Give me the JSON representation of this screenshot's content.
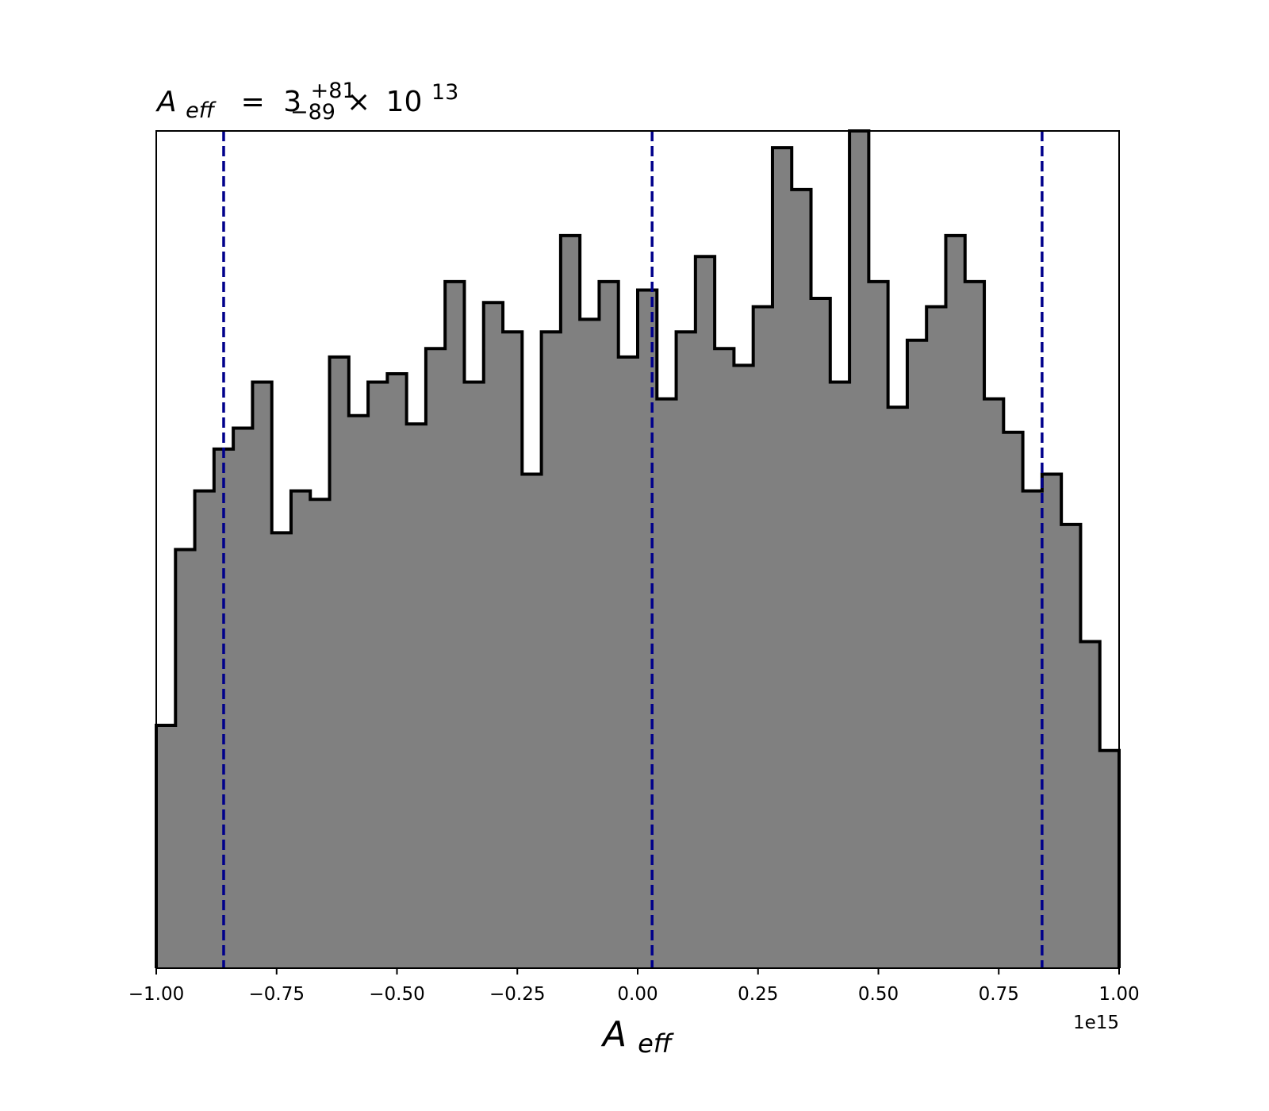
{
  "chart_data": {
    "type": "histogram",
    "title": {
      "variable": "A",
      "variable_subscript": "eff",
      "equals": "=",
      "value": "3",
      "upper_error": "+81",
      "lower_error": "−89",
      "times": "×",
      "base": "10",
      "exponent": "13"
    },
    "xlabel": {
      "main": "A",
      "subscript": "eff"
    },
    "ylabel": "",
    "x_offset_label": "1e15",
    "xlim": [
      -1.0,
      1.0
    ],
    "ylim": [
      0,
      100
    ],
    "x_ticks": [
      -1.0,
      -0.75,
      -0.5,
      -0.25,
      0.0,
      0.25,
      0.5,
      0.75,
      1.0
    ],
    "x_tick_labels": [
      "−1.00",
      "−0.75",
      "−0.50",
      "−0.25",
      "0.00",
      "0.25",
      "0.50",
      "0.75",
      "1.00"
    ],
    "y_ticks_shown": false,
    "grid": false,
    "legend": "none",
    "bin_edges": [
      -1.0,
      -0.96,
      -0.92,
      -0.88,
      -0.84,
      -0.8,
      -0.76,
      -0.72,
      -0.68,
      -0.64,
      -0.6,
      -0.56,
      -0.52,
      -0.48,
      -0.44,
      -0.4,
      -0.36,
      -0.32,
      -0.28,
      -0.24,
      -0.2,
      -0.16,
      -0.12,
      -0.08,
      -0.04,
      0.0,
      0.04,
      0.08,
      0.12,
      0.16,
      0.2,
      0.24,
      0.28,
      0.32,
      0.36,
      0.4,
      0.44,
      0.48,
      0.52,
      0.56,
      0.6,
      0.64,
      0.68,
      0.72,
      0.76,
      0.8,
      0.84,
      0.88,
      0.92,
      0.96,
      1.0
    ],
    "counts": [
      29,
      50,
      57,
      62,
      64.5,
      70,
      52,
      57,
      56,
      73,
      66,
      70,
      71,
      65,
      74,
      82,
      70,
      79.5,
      76,
      59,
      76,
      87.5,
      77.5,
      82,
      73,
      81,
      68,
      76,
      85,
      74,
      72,
      79,
      98,
      93,
      80,
      70,
      100,
      82,
      67,
      75,
      79,
      87.5,
      82,
      68,
      64,
      57,
      59,
      53,
      39,
      26
    ],
    "bar_fill_color": "#808080",
    "bar_edge_color": "#000000",
    "quantile_lines": [
      -0.86,
      0.03,
      0.84
    ],
    "quantile_line_color": "#00008b",
    "quantile_line_style": "dashed",
    "background": "#ffffff"
  }
}
